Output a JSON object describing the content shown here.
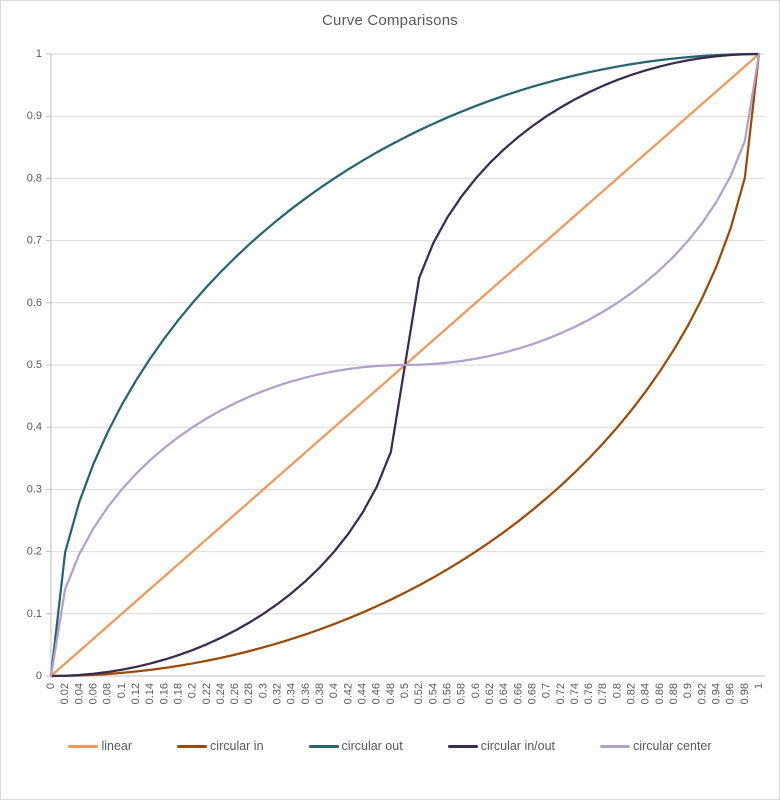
{
  "chart_data": {
    "type": "line",
    "title": "Curve Comparisons",
    "xlabel": "",
    "ylabel": "",
    "xlim": [
      0,
      1
    ],
    "ylim": [
      0,
      1
    ],
    "grid": "horizontal",
    "legend_position": "bottom",
    "x_tick_label_rotation": -90,
    "y_ticks": [
      0,
      0.1,
      0.2,
      0.3,
      0.4,
      0.5,
      0.6,
      0.7,
      0.8,
      0.9,
      1
    ],
    "y_tick_labels": [
      "0",
      "0.1",
      "0.2",
      "0.3",
      "0.4",
      "0.5",
      "0.6",
      "0.7",
      "0.8",
      "0.9",
      "1"
    ],
    "x": [
      0,
      0.02,
      0.04,
      0.06,
      0.08,
      0.1,
      0.12,
      0.14,
      0.16,
      0.18,
      0.2,
      0.22,
      0.24,
      0.26,
      0.28,
      0.3,
      0.32,
      0.34,
      0.36,
      0.38,
      0.4,
      0.42,
      0.44,
      0.46,
      0.48,
      0.5,
      0.52,
      0.54,
      0.56,
      0.58,
      0.6,
      0.62,
      0.64,
      0.66,
      0.68,
      0.7,
      0.72,
      0.74,
      0.76,
      0.78,
      0.8,
      0.82,
      0.84,
      0.86,
      0.88,
      0.9,
      0.92,
      0.94,
      0.96,
      0.98,
      1
    ],
    "x_tick_labels": [
      "0",
      "0.02",
      "0.04",
      "0.06",
      "0.08",
      "0.1",
      "0.12",
      "0.14",
      "0.16",
      "0.18",
      "0.2",
      "0.22",
      "0.24",
      "0.26",
      "0.28",
      "0.3",
      "0.32",
      "0.34",
      "0.36",
      "0.38",
      "0.4",
      "0.42",
      "0.44",
      "0.46",
      "0.48",
      "0.5",
      "0.52",
      "0.54",
      "0.56",
      "0.58",
      "0.6",
      "0.62",
      "0.64",
      "0.66",
      "0.68",
      "0.7",
      "0.72",
      "0.74",
      "0.76",
      "0.78",
      "0.8",
      "0.82",
      "0.84",
      "0.86",
      "0.88",
      "0.9",
      "0.92",
      "0.94",
      "0.96",
      "0.98",
      "1"
    ],
    "series": [
      {
        "name": "linear",
        "color": "#F0975A",
        "values": [
          0,
          0.02,
          0.04,
          0.06,
          0.08,
          0.1,
          0.12,
          0.14,
          0.16,
          0.18,
          0.2,
          0.22,
          0.24,
          0.26,
          0.28,
          0.3,
          0.32,
          0.34,
          0.36,
          0.38,
          0.4,
          0.42,
          0.44,
          0.46,
          0.48,
          0.5,
          0.52,
          0.54,
          0.56,
          0.58,
          0.6,
          0.62,
          0.64,
          0.66,
          0.68,
          0.7,
          0.72,
          0.74,
          0.76,
          0.78,
          0.8,
          0.82,
          0.84,
          0.86,
          0.88,
          0.9,
          0.92,
          0.94,
          0.96,
          0.98,
          1
        ]
      },
      {
        "name": "circular in",
        "color": "#9C4A08",
        "values": [
          0,
          0.0002,
          0.0008,
          0.0018,
          0.0032,
          0.005,
          0.0072,
          0.0098,
          0.0129,
          0.0163,
          0.0202,
          0.0245,
          0.0292,
          0.0344,
          0.04,
          0.0461,
          0.0526,
          0.0596,
          0.0671,
          0.075,
          0.0835,
          0.0925,
          0.102,
          0.1121,
          0.1227,
          0.134,
          0.1458,
          0.1583,
          0.1715,
          0.1854,
          0.2,
          0.2154,
          0.2316,
          0.2487,
          0.2668,
          0.2859,
          0.306,
          0.3274,
          0.3501,
          0.3742,
          0.4,
          0.4276,
          0.4574,
          0.4897,
          0.525,
          0.5641,
          0.6081,
          0.6588,
          0.72,
          0.801,
          1
        ]
      },
      {
        "name": "circular out",
        "color": "#26656E",
        "values": [
          0,
          0.199,
          0.28,
          0.3412,
          0.3919,
          0.4359,
          0.475,
          0.5103,
          0.5426,
          0.5724,
          0.6,
          0.6258,
          0.6499,
          0.6726,
          0.694,
          0.7141,
          0.7332,
          0.7513,
          0.7684,
          0.7846,
          0.8,
          0.8146,
          0.8285,
          0.8417,
          0.8542,
          0.866,
          0.8773,
          0.8879,
          0.898,
          0.9075,
          0.9165,
          0.925,
          0.933,
          0.9404,
          0.9474,
          0.9539,
          0.96,
          0.9656,
          0.9708,
          0.9755,
          0.9798,
          0.9837,
          0.9871,
          0.9902,
          0.9928,
          0.995,
          0.9968,
          0.9982,
          0.9992,
          0.9998,
          1
        ]
      },
      {
        "name": "circular in/out",
        "color": "#3A2B4F",
        "values": [
          0,
          0.0004,
          0.0016,
          0.0036,
          0.0064,
          0.0101,
          0.0146,
          0.02,
          0.0263,
          0.0335,
          0.0417,
          0.051,
          0.0614,
          0.0729,
          0.0858,
          0.1,
          0.1158,
          0.1334,
          0.153,
          0.175,
          0.2,
          0.2287,
          0.2625,
          0.304,
          0.36,
          0.5,
          0.64,
          0.696,
          0.7375,
          0.7713,
          0.8,
          0.825,
          0.847,
          0.8666,
          0.8842,
          0.9,
          0.9142,
          0.9271,
          0.9386,
          0.949,
          0.9583,
          0.9665,
          0.9737,
          0.98,
          0.9854,
          0.9899,
          0.9936,
          0.9964,
          0.9984,
          0.9996,
          1
        ]
      },
      {
        "name": "circular center",
        "color": "#B2A1CB",
        "values": [
          0,
          0.14,
          0.196,
          0.2375,
          0.2713,
          0.3,
          0.325,
          0.347,
          0.3666,
          0.3842,
          0.4,
          0.4142,
          0.4271,
          0.4386,
          0.449,
          0.4583,
          0.4665,
          0.4737,
          0.48,
          0.4854,
          0.4899,
          0.4935,
          0.4964,
          0.4984,
          0.4996,
          0.5,
          0.5004,
          0.5016,
          0.5036,
          0.5065,
          0.5101,
          0.5146,
          0.52,
          0.5263,
          0.5335,
          0.5417,
          0.551,
          0.5614,
          0.5729,
          0.5858,
          0.6,
          0.6158,
          0.6334,
          0.653,
          0.675,
          0.7,
          0.7287,
          0.7625,
          0.804,
          0.86,
          1
        ]
      }
    ],
    "colors": {
      "grid": "#d9d9d9",
      "axis": "#bfbfbf",
      "tick_text": "#595959",
      "title_text": "#595959",
      "background": "#ffffff",
      "frame_border": "#d9d9d9"
    }
  }
}
